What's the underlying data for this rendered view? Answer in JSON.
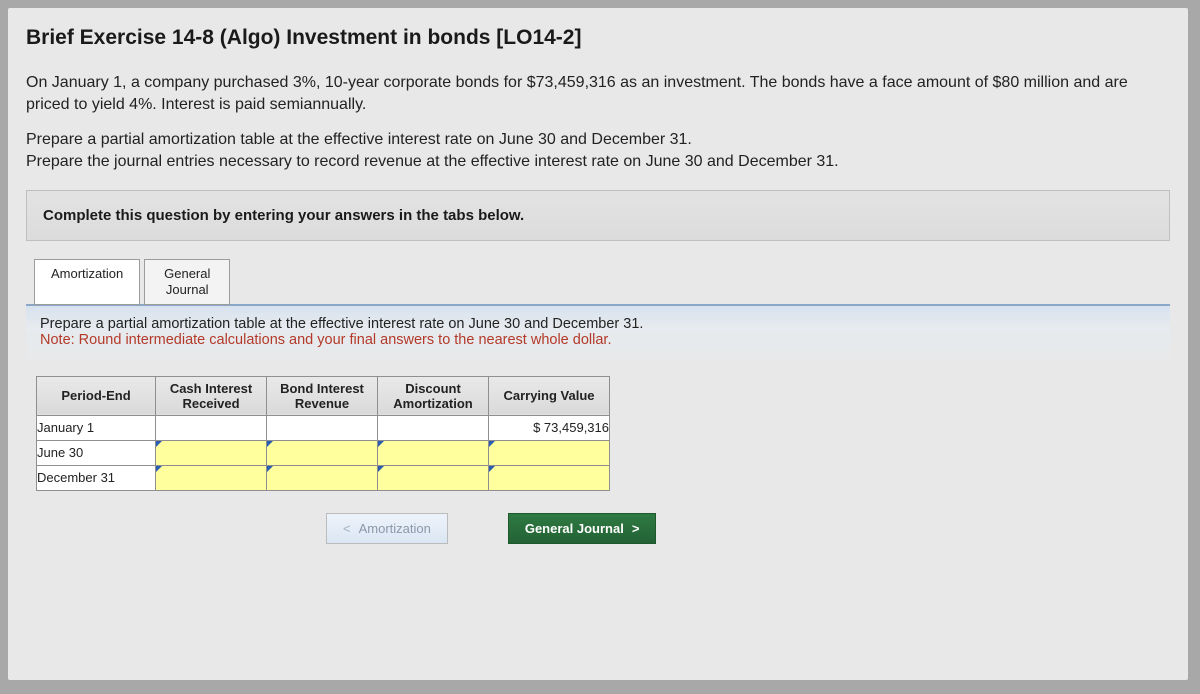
{
  "title": "Brief Exercise 14-8 (Algo) Investment in bonds [LO14-2]",
  "paragraph1": "On January 1, a company purchased 3%, 10-year corporate bonds for $73,459,316 as an investment. The bonds have a face amount of $80 million and are priced to yield 4%. Interest is paid semiannually.",
  "paragraph2a": "Prepare a partial amortization table at the effective interest rate on June 30 and December 31.",
  "paragraph2b": "Prepare the journal entries necessary to record revenue at the effective interest rate on June 30 and December 31.",
  "banner": "Complete this question by entering your answers in the tabs below.",
  "tabs": {
    "amortization": "Amortization",
    "general_journal_line1": "General",
    "general_journal_line2": "Journal"
  },
  "tab_instruction": "Prepare a partial amortization table at the effective interest rate on June 30 and December 31.",
  "tab_note": "Note: Round intermediate calculations and your final answers to the nearest whole dollar.",
  "table": {
    "headers": {
      "period_end": "Period-End",
      "cash_interest": "Cash Interest Received",
      "bond_interest": "Bond Interest Revenue",
      "discount_amort": "Discount Amortization",
      "carrying_value": "Carrying Value"
    },
    "rows": {
      "r1": {
        "label": "January 1",
        "carrying_value": "$  73,459,316"
      },
      "r2": {
        "label": "June 30"
      },
      "r3": {
        "label": "December 31"
      }
    },
    "colors": {
      "header_bg_top": "#e9e9e9",
      "header_bg_bottom": "#d9d9d9",
      "input_bg": "#ffff9e",
      "input_marker": "#2a5db0",
      "border": "#8f8f8f"
    }
  },
  "nav": {
    "prev_label": "Amortization",
    "next_label": "General Journal",
    "prev_chevron": "<",
    "next_chevron": ">"
  }
}
